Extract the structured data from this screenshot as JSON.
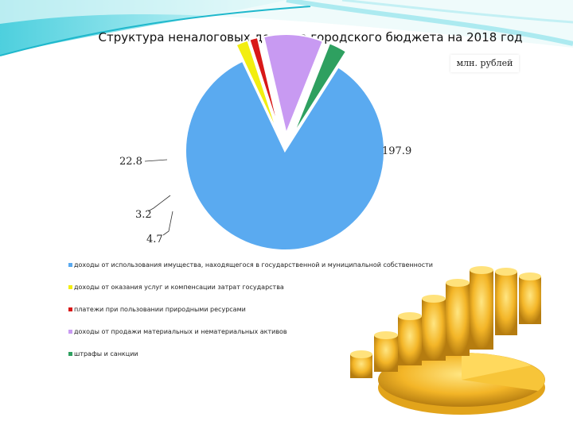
{
  "chart_data": {
    "type": "pie",
    "title": "Структура неналоговых доходов городского бюджета на 2018 год",
    "unit": "млн. рублей",
    "slices": [
      {
        "name": "доходы от использования имущества, находящегося в государственной и муниципальной собственности",
        "value": 197.9,
        "label": "197.9",
        "color": "#5aaaf0"
      },
      {
        "name": "доходы от оказания услуг и компенсации затрат государства",
        "value": 4.7,
        "label": "4.7",
        "color": "#f2ee10"
      },
      {
        "name": "платежи при пользовании природными ресурсами",
        "value": 3.2,
        "label": "3.2",
        "color": "#d81818"
      },
      {
        "name": "доходы от продажи материальных и нематериальных активов",
        "value": 22.8,
        "label": "22.8",
        "color": "#c89af2"
      },
      {
        "name": "штрафы и санкции",
        "value": 7.0,
        "label": "",
        "color": "#2ea060"
      }
    ],
    "legend_position": "bottom-left"
  }
}
